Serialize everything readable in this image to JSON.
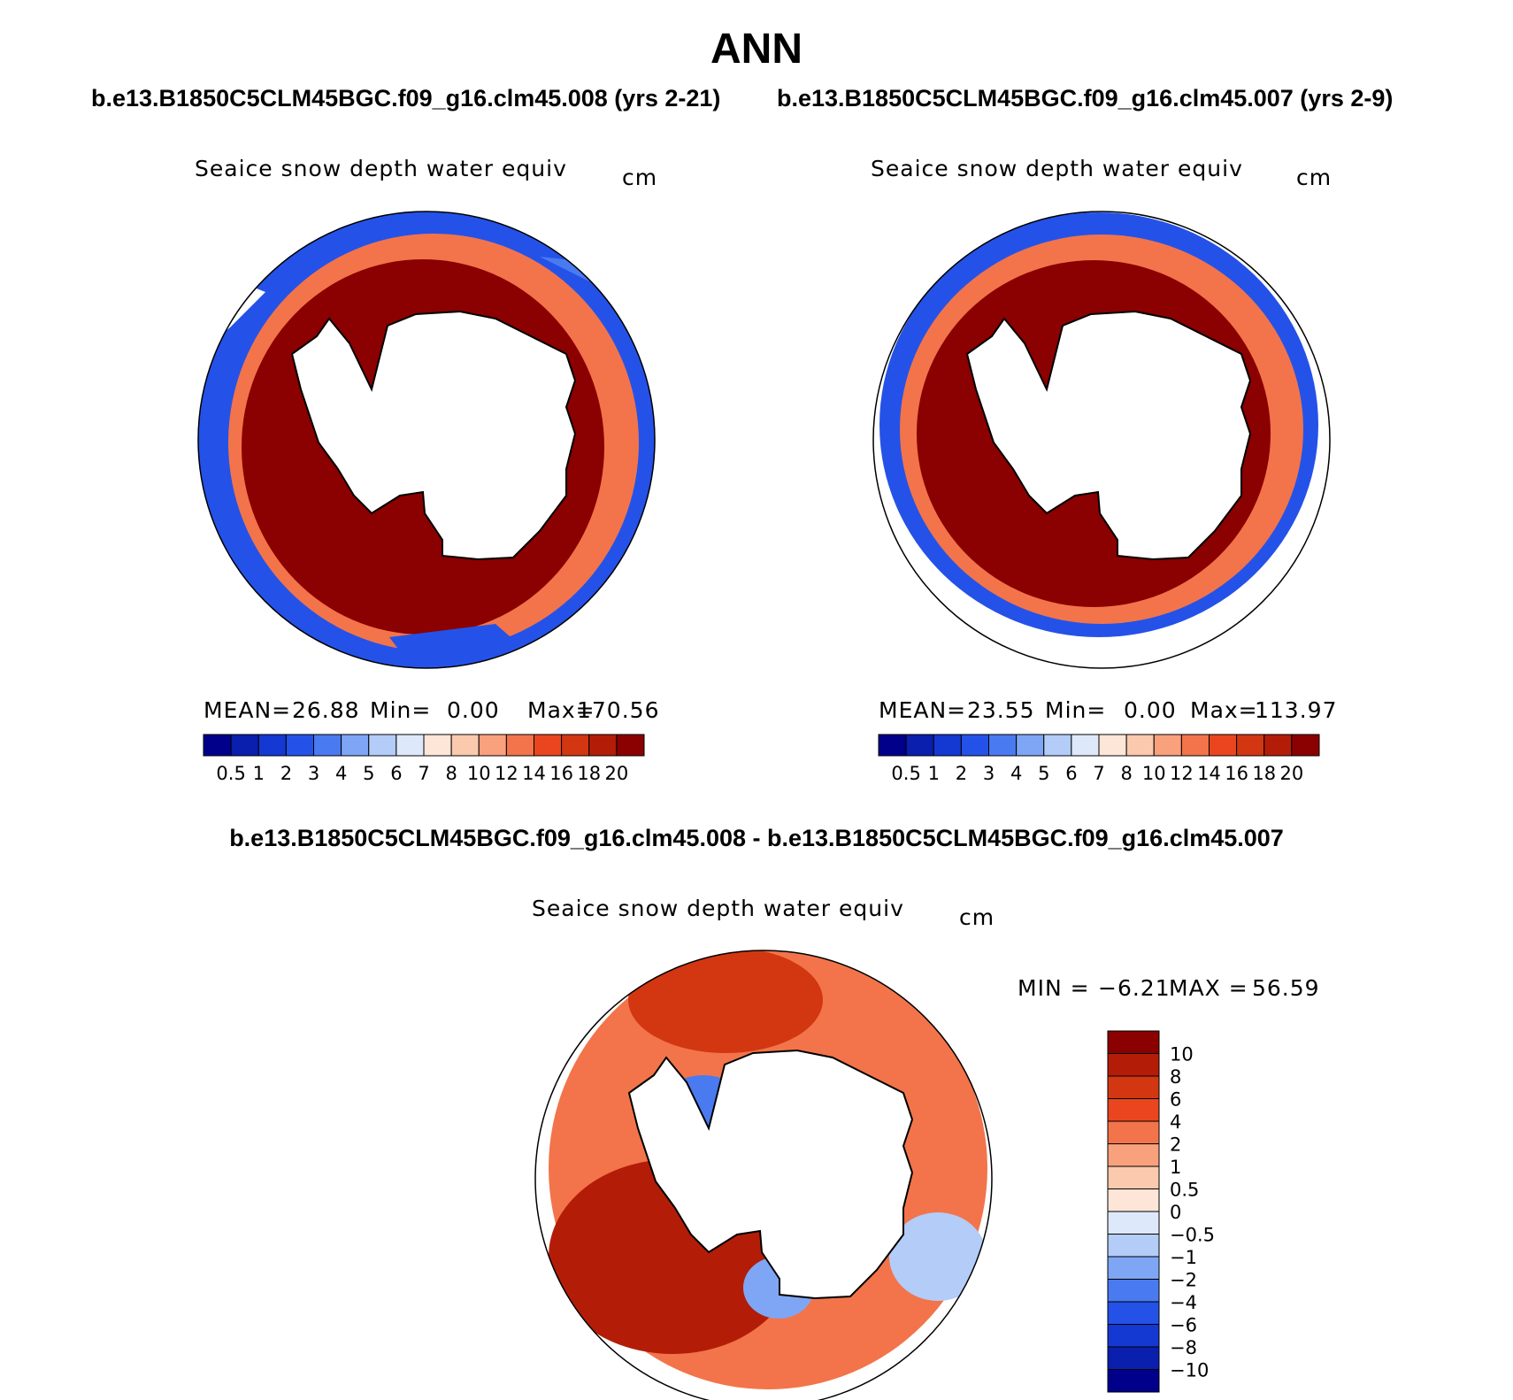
{
  "figure": {
    "title": "ANN",
    "case_a_label": "b.e13.B1850C5CLM45BGC.f09_g16.clm45.008 (yrs 2-21)",
    "case_b_label": "b.e13.B1850C5CLM45BGC.f09_g16.clm45.007 (yrs 2-9)",
    "diff_label": "b.e13.B1850C5CLM45BGC.f09_g16.clm45.008 - b.e13.B1850C5CLM45BGC.f09_g16.clm45.007"
  },
  "panels": [
    {
      "id": "case-a",
      "title": "Seaice snow depth water equiv",
      "units": "cm",
      "mean_label": "MEAN=",
      "mean": "26.88",
      "min_label": "Min=",
      "min": "0.00",
      "max_label": "Max=",
      "max": "170.56"
    },
    {
      "id": "case-b",
      "title": "Seaice snow depth water equiv",
      "units": "cm",
      "mean_label": "MEAN=",
      "mean": "23.55",
      "min_label": "Min=",
      "min": "0.00",
      "max_label": "Max=",
      "max": "113.97"
    },
    {
      "id": "difference",
      "title": "Seaice snow depth water equiv",
      "units": "cm",
      "min_label": "MIN =",
      "min": "−6.21",
      "max_label": "MAX =",
      "max": "56.59"
    }
  ],
  "chart_data": [
    {
      "type": "heatmap",
      "projection": "south-polar-stereographic",
      "title": "Seaice snow depth water equiv",
      "units": "cm",
      "mean": 26.88,
      "min": 0.0,
      "max": 170.56,
      "colorbar": {
        "orientation": "horizontal",
        "levels": [
          "0.5",
          "1",
          "2",
          "3",
          "4",
          "5",
          "6",
          "7",
          "8",
          "10",
          "12",
          "14",
          "16",
          "18",
          "20"
        ],
        "colors": [
          "#00008b",
          "#0a1fae",
          "#1438d2",
          "#2452e8",
          "#4a7af0",
          "#7fa6f5",
          "#b3ccf8",
          "#dde9fb",
          "#fde6d8",
          "#fbc9ad",
          "#f9a07c",
          "#f3744a",
          "#e9461f",
          "#d23712",
          "#b31d08",
          "#8b0000"
        ]
      }
    },
    {
      "type": "heatmap",
      "projection": "south-polar-stereographic",
      "title": "Seaice snow depth water equiv",
      "units": "cm",
      "mean": 23.55,
      "min": 0.0,
      "max": 113.97,
      "colorbar": {
        "orientation": "horizontal",
        "levels": [
          "0.5",
          "1",
          "2",
          "3",
          "4",
          "5",
          "6",
          "7",
          "8",
          "10",
          "12",
          "14",
          "16",
          "18",
          "20"
        ],
        "colors": [
          "#00008b",
          "#0a1fae",
          "#1438d2",
          "#2452e8",
          "#4a7af0",
          "#7fa6f5",
          "#b3ccf8",
          "#dde9fb",
          "#fde6d8",
          "#fbc9ad",
          "#f9a07c",
          "#f3744a",
          "#e9461f",
          "#d23712",
          "#b31d08",
          "#8b0000"
        ]
      }
    },
    {
      "type": "heatmap",
      "projection": "south-polar-stereographic",
      "title": "Seaice snow depth water equiv",
      "units": "cm",
      "min": -6.21,
      "max": 56.59,
      "colorbar": {
        "orientation": "vertical",
        "levels": [
          "10",
          "8",
          "6",
          "4",
          "2",
          "1",
          "0.5",
          "0",
          "−0.5",
          "−1",
          "−2",
          "−4",
          "−6",
          "−8",
          "−10"
        ],
        "colors": [
          "#8b0000",
          "#b31d08",
          "#d23712",
          "#e9461f",
          "#f3744a",
          "#f9a07c",
          "#fbc9ad",
          "#fde6d8",
          "#dde9fb",
          "#b3ccf8",
          "#7fa6f5",
          "#4a7af0",
          "#2452e8",
          "#1438d2",
          "#0a1fae",
          "#00008b"
        ]
      }
    }
  ]
}
